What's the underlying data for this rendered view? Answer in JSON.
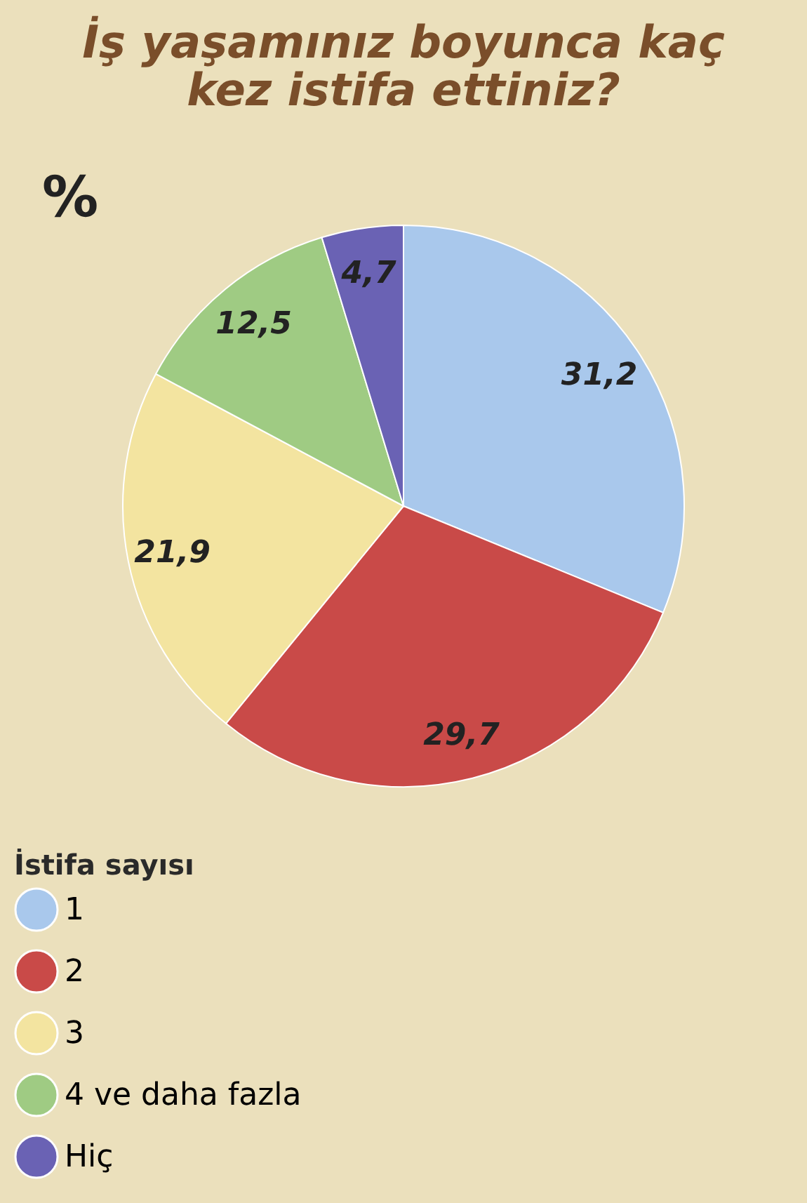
{
  "chart_data": {
    "type": "pie",
    "title": "İş yaşamınız boyunca kaç kez istifa ettiniz?",
    "legend_title": "İstifa sayısı",
    "categories": [
      "1",
      "2",
      "3",
      "4 ve daha fazla",
      "Hiç"
    ],
    "values": [
      31.2,
      29.7,
      21.9,
      12.5,
      4.7
    ],
    "value_labels": [
      "31,2",
      "29,7",
      "21,9",
      "12,5",
      "4,7"
    ],
    "colors": [
      "#a9c8ec",
      "#c94a48",
      "#f3e4a0",
      "#9fcb83",
      "#6a62b4"
    ],
    "annotations": [
      "%"
    ],
    "legend": "bottom"
  }
}
